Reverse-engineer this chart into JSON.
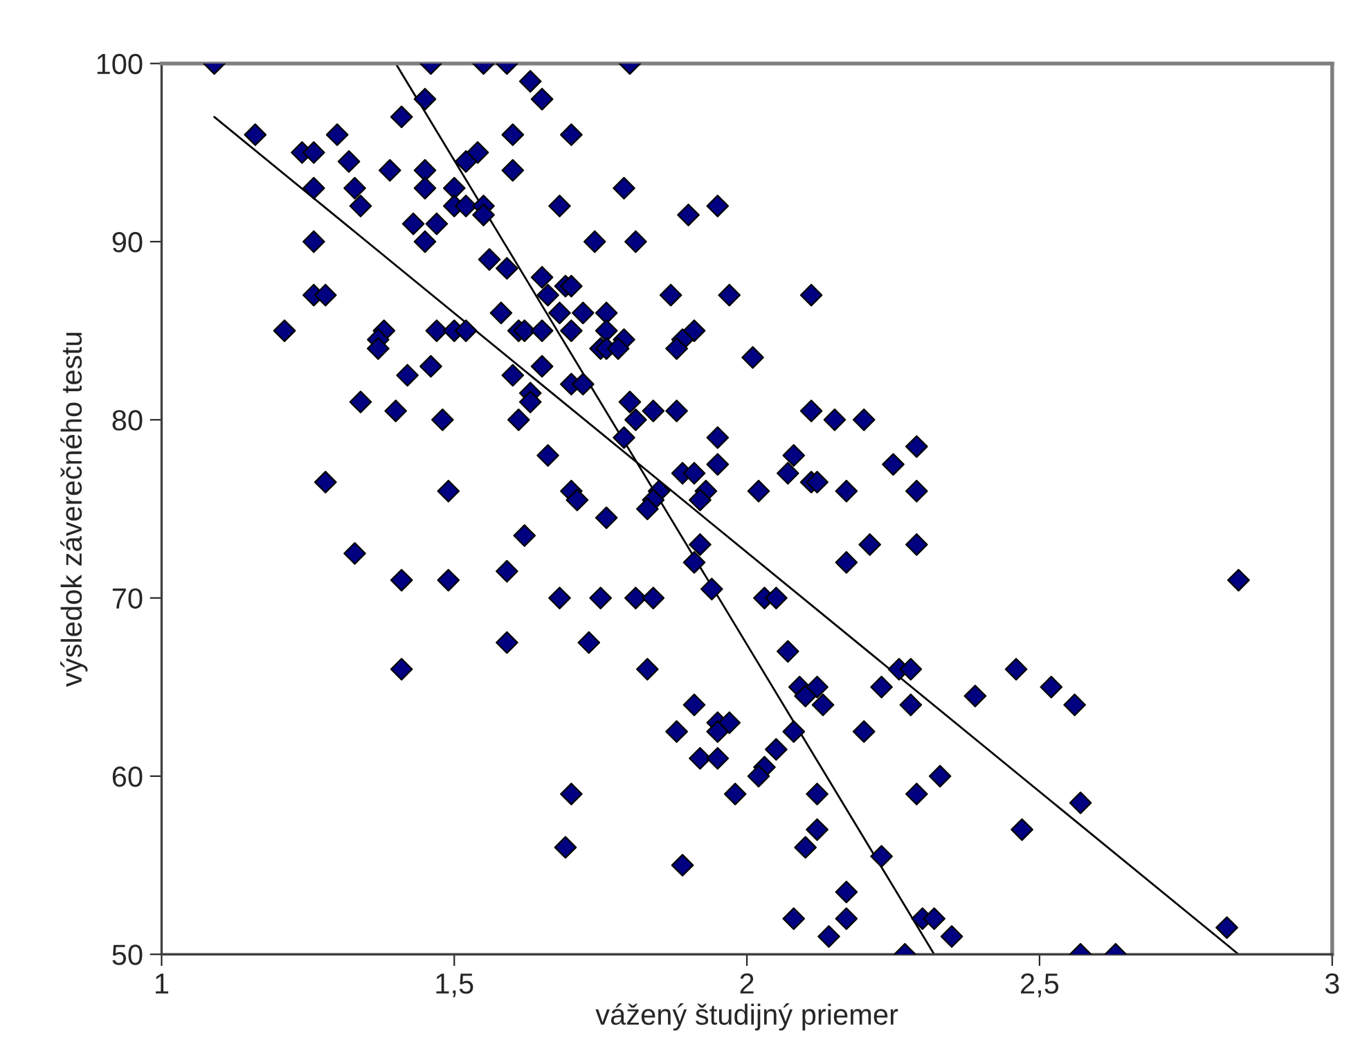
{
  "chart_data": {
    "type": "scatter",
    "xlabel": "vážený študijný priemer",
    "ylabel": "výsledok záverečného testu",
    "xlim": [
      1,
      3
    ],
    "xticks": [
      1,
      {
        "value": 1.5,
        "label": "1,5"
      },
      2,
      {
        "value": 2.5,
        "label": "2,5"
      },
      3
    ],
    "ylim": [
      50,
      100
    ],
    "yticks": [
      50,
      60,
      70,
      80,
      90,
      100
    ],
    "grid": false,
    "series": [
      {
        "color": "#000080",
        "marker": "diamond",
        "x": [
          1.09,
          1.46,
          1.55,
          1.59,
          1.63,
          1.65,
          1.45,
          1.41,
          1.16,
          1.3,
          1.6,
          1.7,
          1.24,
          1.26,
          1.54,
          1.52,
          1.32,
          1.39,
          1.45,
          1.6,
          1.26,
          1.33,
          1.45,
          1.5,
          1.34,
          1.5,
          1.52,
          1.55,
          1.55,
          1.68,
          1.43,
          1.47,
          1.26,
          1.45,
          1.74,
          1.56,
          1.59,
          1.65,
          1.69,
          1.7,
          1.66,
          1.26,
          1.28,
          1.68,
          1.72,
          1.76,
          1.58,
          1.21,
          1.38,
          1.37,
          1.37,
          1.47,
          1.5,
          1.52,
          1.61,
          1.62,
          1.65,
          1.7,
          1.76,
          1.75,
          1.76,
          1.65,
          1.46,
          1.42,
          1.6,
          1.7,
          1.72,
          1.63,
          1.63,
          1.34,
          1.4,
          1.48,
          1.61,
          1.66,
          1.28,
          1.49,
          1.7,
          1.71,
          1.33,
          1.41,
          1.49,
          1.59,
          1.62,
          1.68,
          1.75,
          1.59,
          1.73,
          1.41,
          1.7,
          1.69,
          1.76,
          1.8,
          1.79,
          1.9,
          1.95,
          1.81,
          1.87,
          1.97,
          2.11,
          1.79,
          1.78,
          1.91,
          1.89,
          1.88,
          2.01,
          1.8,
          1.84,
          1.88,
          1.81,
          2.11,
          2.15,
          2.2,
          1.79,
          1.95,
          2.08,
          2.29,
          2.25,
          1.95,
          1.89,
          1.91,
          2.07,
          2.11,
          2.12,
          1.93,
          2.02,
          2.17,
          2.29,
          1.92,
          1.85,
          1.84,
          1.83,
          1.92,
          1.91,
          2.17,
          2.21,
          2.29,
          1.94,
          1.81,
          1.84,
          2.03,
          2.05,
          2.07,
          1.83,
          2.26,
          2.28,
          2.46,
          2.52,
          2.09,
          2.12,
          2.1,
          2.13,
          2.23,
          2.28,
          2.39,
          1.91,
          1.95,
          1.97,
          1.95,
          1.88,
          2.08,
          2.2,
          2.05,
          1.92,
          1.95,
          2.03,
          2.02,
          2.33,
          1.98,
          2.12,
          2.29,
          2.47,
          2.12,
          2.1,
          1.89,
          2.23,
          2.17,
          2.08,
          2.17,
          2.3,
          2.32,
          2.14,
          2.35,
          2.27,
          2.84,
          2.56,
          2.57,
          2.82,
          2.57,
          2.63
        ],
        "values": [
          100,
          100,
          100,
          100,
          99,
          98,
          98,
          97,
          96,
          96,
          96,
          96,
          95,
          95,
          95,
          94.5,
          94.5,
          94,
          94,
          94,
          93,
          93,
          93,
          93,
          92,
          92,
          92,
          92,
          91.5,
          92,
          91,
          91,
          90,
          90,
          90,
          89,
          88.5,
          88,
          87.5,
          87.5,
          87,
          87,
          87,
          86,
          86,
          86,
          86,
          85,
          85,
          84.5,
          84,
          85,
          85,
          85,
          85,
          85,
          85,
          85,
          85,
          84,
          84,
          83,
          83,
          82.5,
          82.5,
          82,
          82,
          81.5,
          81,
          81,
          80.5,
          80,
          80,
          78,
          76.5,
          76,
          76,
          75.5,
          72.5,
          71,
          71,
          71.5,
          73.5,
          70,
          70,
          67.5,
          67.5,
          66,
          59,
          56,
          74.5,
          100,
          93,
          91.5,
          92,
          90,
          87,
          87,
          87,
          84.5,
          84,
          85,
          84.5,
          84,
          83.5,
          81,
          80.5,
          80.5,
          80,
          80.5,
          80,
          80,
          79,
          79,
          78,
          78.5,
          77.5,
          77.5,
          77,
          77,
          77,
          76.5,
          76.5,
          76,
          76,
          76,
          76,
          75.5,
          76,
          75.5,
          75,
          73,
          72,
          72,
          73,
          73,
          70.5,
          70,
          70,
          70,
          70,
          67,
          66,
          66,
          66,
          66,
          65,
          65,
          65,
          64.5,
          64,
          65,
          64,
          64.5,
          64,
          63,
          63,
          62.5,
          62.5,
          62.5,
          62.5,
          61.5,
          61,
          61,
          60.5,
          60,
          60,
          59,
          59,
          59,
          57,
          57,
          56,
          55,
          55.5,
          53.5,
          52,
          52,
          52,
          52,
          51,
          51,
          50,
          71,
          64,
          58.5,
          51.5,
          50,
          50
        ]
      },
      {
        "type": "line",
        "color": "#000000",
        "marker": "none",
        "line_style": "solid",
        "x": [
          1.09,
          2.84
        ],
        "values": [
          97,
          50
        ]
      },
      {
        "type": "line",
        "color": "#000000",
        "marker": "none",
        "line_style": "solid",
        "x": [
          1.4,
          2.32
        ],
        "values": [
          100,
          50
        ]
      }
    ]
  }
}
